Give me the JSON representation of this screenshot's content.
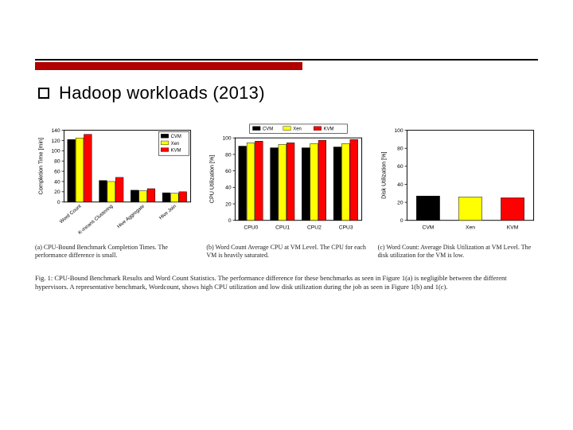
{
  "header": {
    "title": "Hadoop workloads (2013)"
  },
  "colors": {
    "accent_red": "#b00000",
    "rule_black": "#000000",
    "cvm": "#000000",
    "xen": "#ffff00",
    "kvm": "#ff0000",
    "axis": "#000000",
    "bg": "#ffffff"
  },
  "chart_a": {
    "type": "bar",
    "series_labels": [
      "CVM",
      "Xen",
      "KVM"
    ],
    "series_colors": [
      "#000000",
      "#ffff00",
      "#ff0000"
    ],
    "categories": [
      "Word Count",
      "K-means Clustering",
      "Hive Aggregate",
      "Hive Join"
    ],
    "values": [
      [
        122,
        125,
        132
      ],
      [
        42,
        40,
        48
      ],
      [
        23,
        22,
        26
      ],
      [
        18,
        17,
        20
      ]
    ],
    "ylabel": "Completion Time [min]",
    "ylim": [
      0,
      140
    ],
    "ytick_step": 20,
    "label_fontsize": 8
  },
  "chart_b": {
    "type": "bar",
    "series_labels": [
      "CVM",
      "Xen",
      "KVM"
    ],
    "series_colors": [
      "#000000",
      "#ffff00",
      "#ff0000"
    ],
    "categories": [
      "CPU0",
      "CPU1",
      "CPU2",
      "CPU3"
    ],
    "values": [
      [
        90,
        94,
        96
      ],
      [
        88,
        92,
        94
      ],
      [
        88,
        93,
        97
      ],
      [
        89,
        93,
        98
      ]
    ],
    "ylabel": "CPU Utilization [%]",
    "ylim": [
      0,
      100
    ],
    "ytick_step": 20,
    "label_fontsize": 8
  },
  "chart_c": {
    "type": "bar",
    "series_labels": [
      "CVM",
      "Xen",
      "KVM"
    ],
    "series_colors": [
      "#000000",
      "#ffff00",
      "#ff0000"
    ],
    "categories": [
      "CVM",
      "Xen",
      "KVM"
    ],
    "values": [
      27,
      26,
      25
    ],
    "ylabel": "Disk Utilization [%]",
    "ylim": [
      0,
      100
    ],
    "ytick_step": 20,
    "label_fontsize": 8
  },
  "captions": {
    "a": "(a) CPU-Bound Benchmark Completion Times. The performance difference is small.",
    "b": "(b) Word Count Average CPU at VM Level. The CPU for each VM is heavily saturated.",
    "c": "(c) Word Count: Average Disk Utilization at VM Level. The disk utilization for the VM is low."
  },
  "figure_caption": "Fig. 1: CPU-Bound Benchmark Results and Word Count Statistics. The performance difference for these benchmarks as seen in Figure 1(a) is negligible between the different hypervisors. A representative benchmark, Wordcount, shows high CPU utilization and low disk utilization during the job as seen in Figure 1(b) and 1(c)."
}
